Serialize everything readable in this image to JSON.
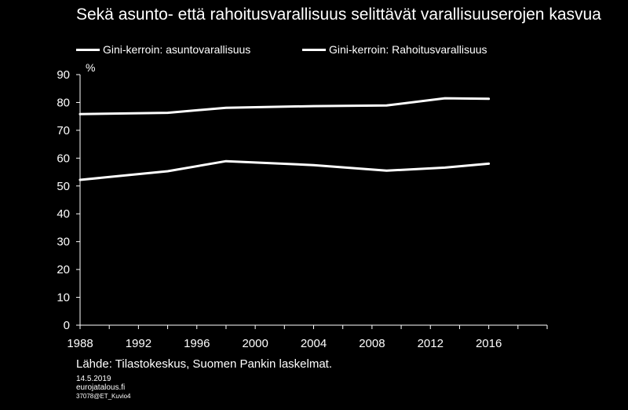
{
  "title": "Sekä asunto- että rahoitusvarallisuus selittävät varallisuuserojen kasvua",
  "unit": "%",
  "source": "Lähde: Tilastokeskus, Suomen Pankin laskelmat.",
  "date": "14.5.2019",
  "site": "eurojatalous.fi",
  "code": "37078@ET_Kuvio4",
  "colors": {
    "background": "#000000",
    "series": "#ffffff",
    "axis": "#ffffff"
  },
  "chart_data": {
    "type": "line",
    "xlim": [
      1988,
      2020
    ],
    "ylim": [
      0,
      90
    ],
    "x_ticks": [
      "1988",
      "1992",
      "1996",
      "2000",
      "2004",
      "2008",
      "2012",
      "2016"
    ],
    "y_ticks": [
      "0",
      "10",
      "20",
      "30",
      "40",
      "50",
      "60",
      "70",
      "80",
      "90"
    ],
    "grid": false,
    "legend_position": "top",
    "series": [
      {
        "name": "Gini-kerroin: asuntovarallisuus",
        "x": [
          1988,
          1994,
          1998,
          2004,
          2009,
          2013,
          2016
        ],
        "y": [
          52.2,
          55.3,
          58.9,
          57.5,
          55.5,
          56.6,
          58.0
        ]
      },
      {
        "name": "Gini-kerroin: Rahoitusvarallisuus",
        "x": [
          1988,
          1994,
          1998,
          2004,
          2009,
          2013,
          2016
        ],
        "y": [
          75.8,
          76.3,
          78.1,
          78.7,
          78.9,
          81.5,
          81.3
        ]
      }
    ]
  }
}
